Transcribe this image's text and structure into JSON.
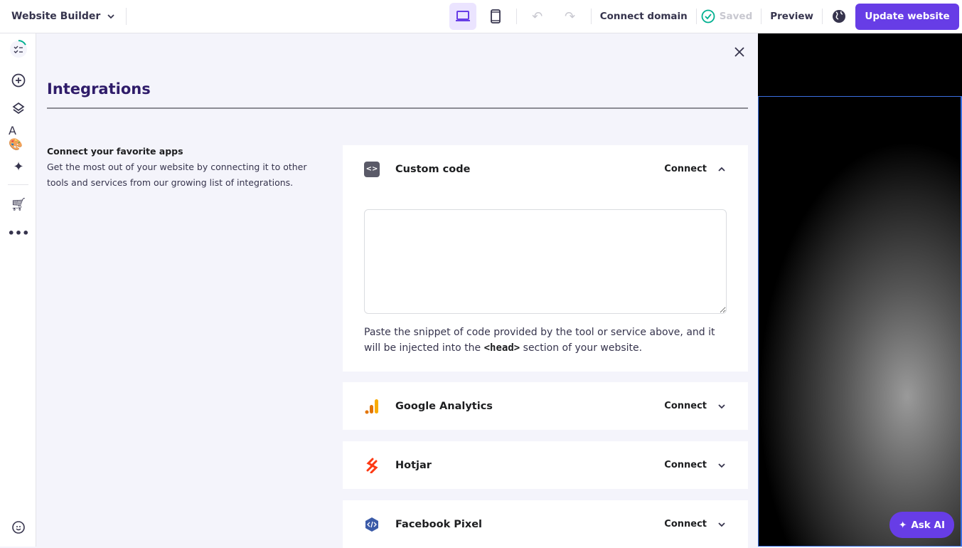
{
  "topbar": {
    "brand": "Website Builder",
    "connect_domain": "Connect domain",
    "saved": "Saved",
    "preview": "Preview",
    "update": "Update website"
  },
  "panel": {
    "title": "Integrations",
    "intro_title": "Connect your favorite apps",
    "intro_text": "Get the most out of your website by connecting it to other tools and services from our growing list of integrations."
  },
  "integrations": [
    {
      "name": "Custom code",
      "action": "Connect",
      "expanded": true,
      "help_pre": "Paste the snippet of code provided by the tool or service above, and it will be injected into the ",
      "help_code": "<head>",
      "help_post": " section of your website.",
      "code_value": ""
    },
    {
      "name": "Google Analytics",
      "action": "Connect",
      "expanded": false
    },
    {
      "name": "Hotjar",
      "action": "Connect",
      "expanded": false
    },
    {
      "name": "Facebook Pixel",
      "action": "Connect",
      "expanded": false
    }
  ],
  "ask_ai": "Ask AI",
  "colors": {
    "accent": "#673de6",
    "saved_check": "#00b090"
  }
}
